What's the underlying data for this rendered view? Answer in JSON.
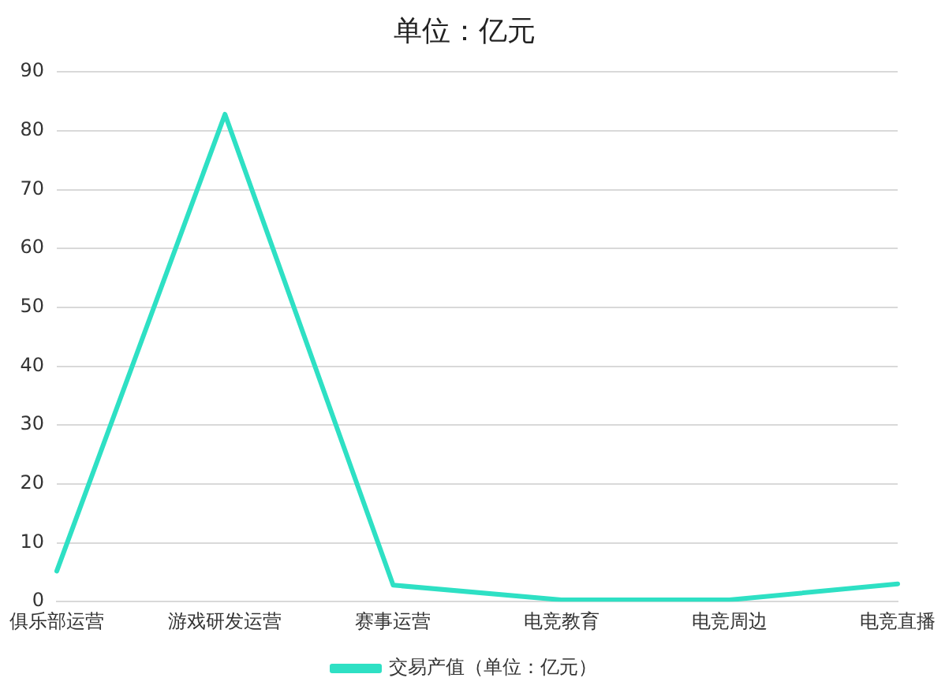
{
  "chart_data": {
    "type": "line",
    "title": "单位：亿元",
    "categories": [
      "俱乐部运营",
      "游戏研发运营",
      "赛事运营",
      "电竞教育",
      "电竞周边",
      "电竞直播"
    ],
    "series": [
      {
        "name": "交易产值（单位：亿元）",
        "color": "#2ee0c4",
        "values": [
          5.2,
          82.8,
          2.8,
          0.3,
          0.3,
          3.0
        ]
      }
    ],
    "ylim": [
      0,
      90
    ],
    "yticks": [
      0,
      10,
      20,
      30,
      40,
      50,
      60,
      70,
      80,
      90
    ],
    "grid": "y",
    "legend": "bottom",
    "marker": "none",
    "line_style": "solid"
  }
}
